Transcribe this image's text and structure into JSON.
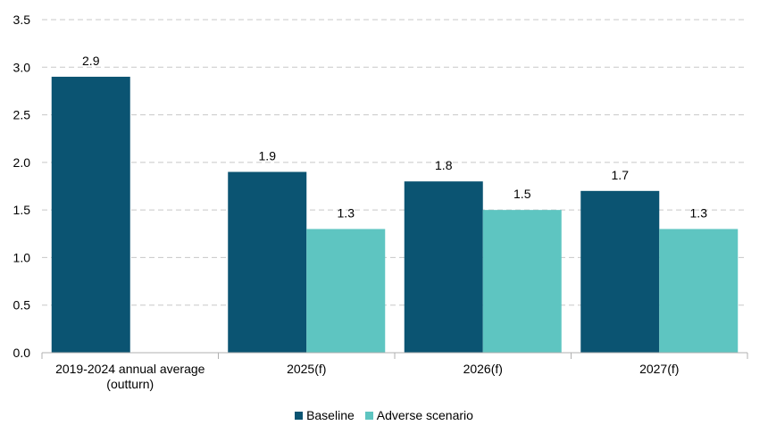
{
  "chart_data": {
    "type": "bar",
    "categories": [
      [
        "2019-2024 annual average",
        "(outturn)"
      ],
      [
        "2025(f)"
      ],
      [
        "2026(f)"
      ],
      [
        "2027(f)"
      ]
    ],
    "series": [
      {
        "name": "Baseline",
        "color": "#0b5472",
        "values": [
          2.9,
          1.9,
          1.8,
          1.7
        ],
        "labels": [
          "2.9",
          "1.9",
          "1.8",
          "1.7"
        ]
      },
      {
        "name": "Adverse scenario",
        "color": "#5ec5c1",
        "values": [
          null,
          1.3,
          1.5,
          1.3
        ],
        "labels": [
          "",
          "1.3",
          "1.5",
          "1.3"
        ]
      }
    ],
    "ylim": [
      0,
      3.5
    ],
    "yticks": [
      "0.0",
      "0.5",
      "1.0",
      "1.5",
      "2.0",
      "2.5",
      "3.0",
      "3.5"
    ],
    "grid": true,
    "legend_position": "bottom-center",
    "title": "",
    "xlabel": "",
    "ylabel": ""
  }
}
